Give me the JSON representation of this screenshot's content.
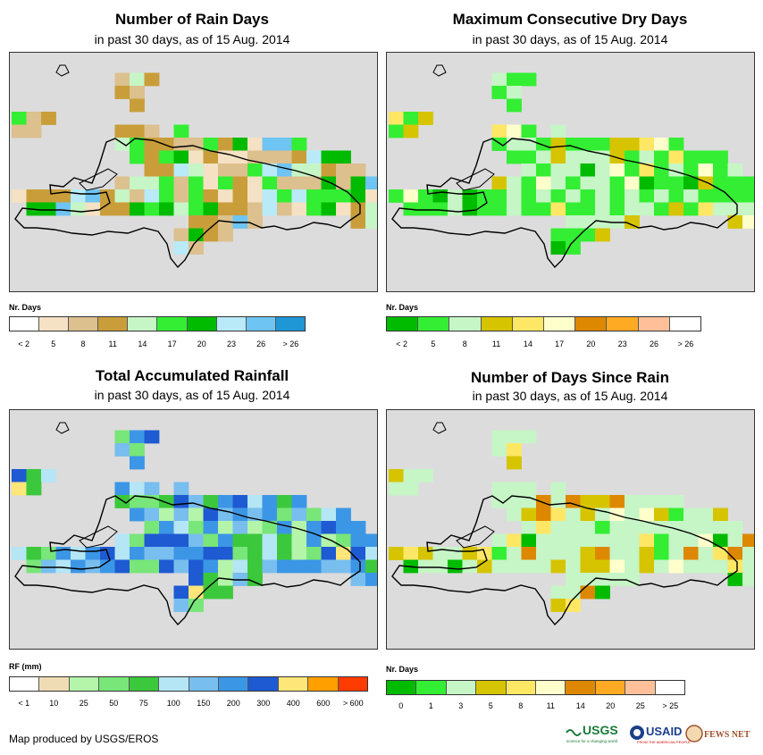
{
  "panels": [
    {
      "id": "rain-days",
      "title": "Number of Rain Days",
      "subtitle": "in past 30 days, as of 15 Aug. 2014",
      "legend_title": "Nr. Days",
      "legend_colors": [
        "#ffffff",
        "#f5e1c3",
        "#dcc08e",
        "#c99e3a",
        "#c6f5c6",
        "#33ee33",
        "#00bb00",
        "#b8eaf8",
        "#6ec4f2",
        "#1f96d6"
      ],
      "legend_ticks": [
        "< 2",
        "5",
        "8",
        "11",
        "14",
        "17",
        "20",
        "23",
        "26",
        "> 26"
      ]
    },
    {
      "id": "max-dry-days",
      "title": "Maximum Consecutive Dry Days",
      "subtitle": "in past 30 days, as of 15 Aug. 2014",
      "legend_title": "Nr. Days",
      "legend_colors": [
        "#00bb00",
        "#33ee33",
        "#c6f5c6",
        "#d6c400",
        "#ffe766",
        "#ffffcc",
        "#dd8800",
        "#ffaa22",
        "#ffc099",
        "#ffffff"
      ],
      "legend_ticks": [
        "< 2",
        "5",
        "8",
        "11",
        "14",
        "17",
        "20",
        "23",
        "26",
        "> 26"
      ]
    },
    {
      "id": "total-rainfall",
      "title": "Total Accumulated Rainfall",
      "subtitle": "in past 30 days, as of 15 Aug. 2014",
      "legend_title": "RF (mm)",
      "legend_colors": [
        "#ffffff",
        "#f0dcb4",
        "#b4f5aa",
        "#78e678",
        "#3cc83c",
        "#b4e6f5",
        "#78beee",
        "#3c96e6",
        "#1e5ad2",
        "#ffe678",
        "#ffa000",
        "#ff3c00"
      ],
      "legend_ticks": [
        "< 1",
        "10",
        "25",
        "50",
        "75",
        "100",
        "150",
        "200",
        "300",
        "400",
        "600",
        "> 600"
      ]
    },
    {
      "id": "days-since-rain",
      "title": "Number of Days Since Rain",
      "subtitle": "in past 30 days, as of 15 Aug. 2014",
      "legend_title": "Nr. Days",
      "legend_colors": [
        "#00bb00",
        "#33ee33",
        "#c6f5c6",
        "#d6c400",
        "#ffe766",
        "#ffffcc",
        "#dd8800",
        "#ffaa22",
        "#ffc099",
        "#ffffff"
      ],
      "legend_ticks": [
        "0",
        "1",
        "3",
        "5",
        "8",
        "11",
        "14",
        "20",
        "25",
        "> 25"
      ]
    }
  ],
  "footer": "Map produced by USGS/EROS",
  "logos": {
    "usgs": "USGS",
    "usgs_tagline": "science for a changing world",
    "usaid": "USAID",
    "usaid_tagline": "FROM THE AMERICAN PEOPLE",
    "fews": "FEWS NET"
  }
}
